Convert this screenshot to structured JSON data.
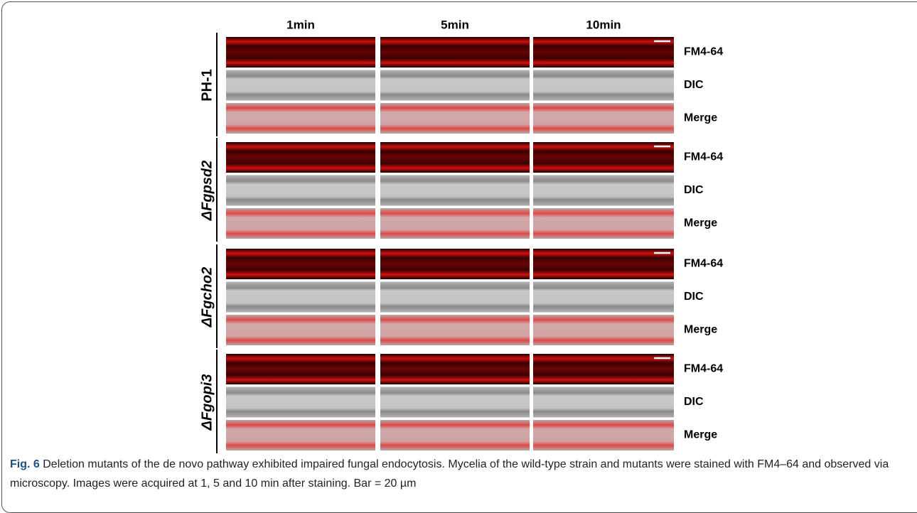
{
  "figure": {
    "columns": [
      "1min",
      "5min",
      "10min"
    ],
    "groups": [
      {
        "label": "PH-1",
        "italic": false,
        "rows": [
          "FM4-64",
          "DIC",
          "Merge"
        ]
      },
      {
        "label": "ΔFgpsd2",
        "italic": true,
        "rows": [
          "FM4-64",
          "DIC",
          "Merge"
        ]
      },
      {
        "label": "ΔFgcho2",
        "italic": true,
        "rows": [
          "FM4-64",
          "DIC",
          "Merge"
        ]
      },
      {
        "label": "ΔFgopi3",
        "italic": true,
        "rows": [
          "FM4-64",
          "DIC",
          "Merge"
        ]
      }
    ],
    "caption": {
      "label": "Fig. 6",
      "text": "Deletion mutants of the de novo pathway exhibited impaired fungal endocytosis. Mycelia of the wild-type strain and mutants were stained with FM4–64 and observed via microscopy. Images were acquired at 1, 5 and 10 min after staining. Bar = 20 µm"
    }
  }
}
